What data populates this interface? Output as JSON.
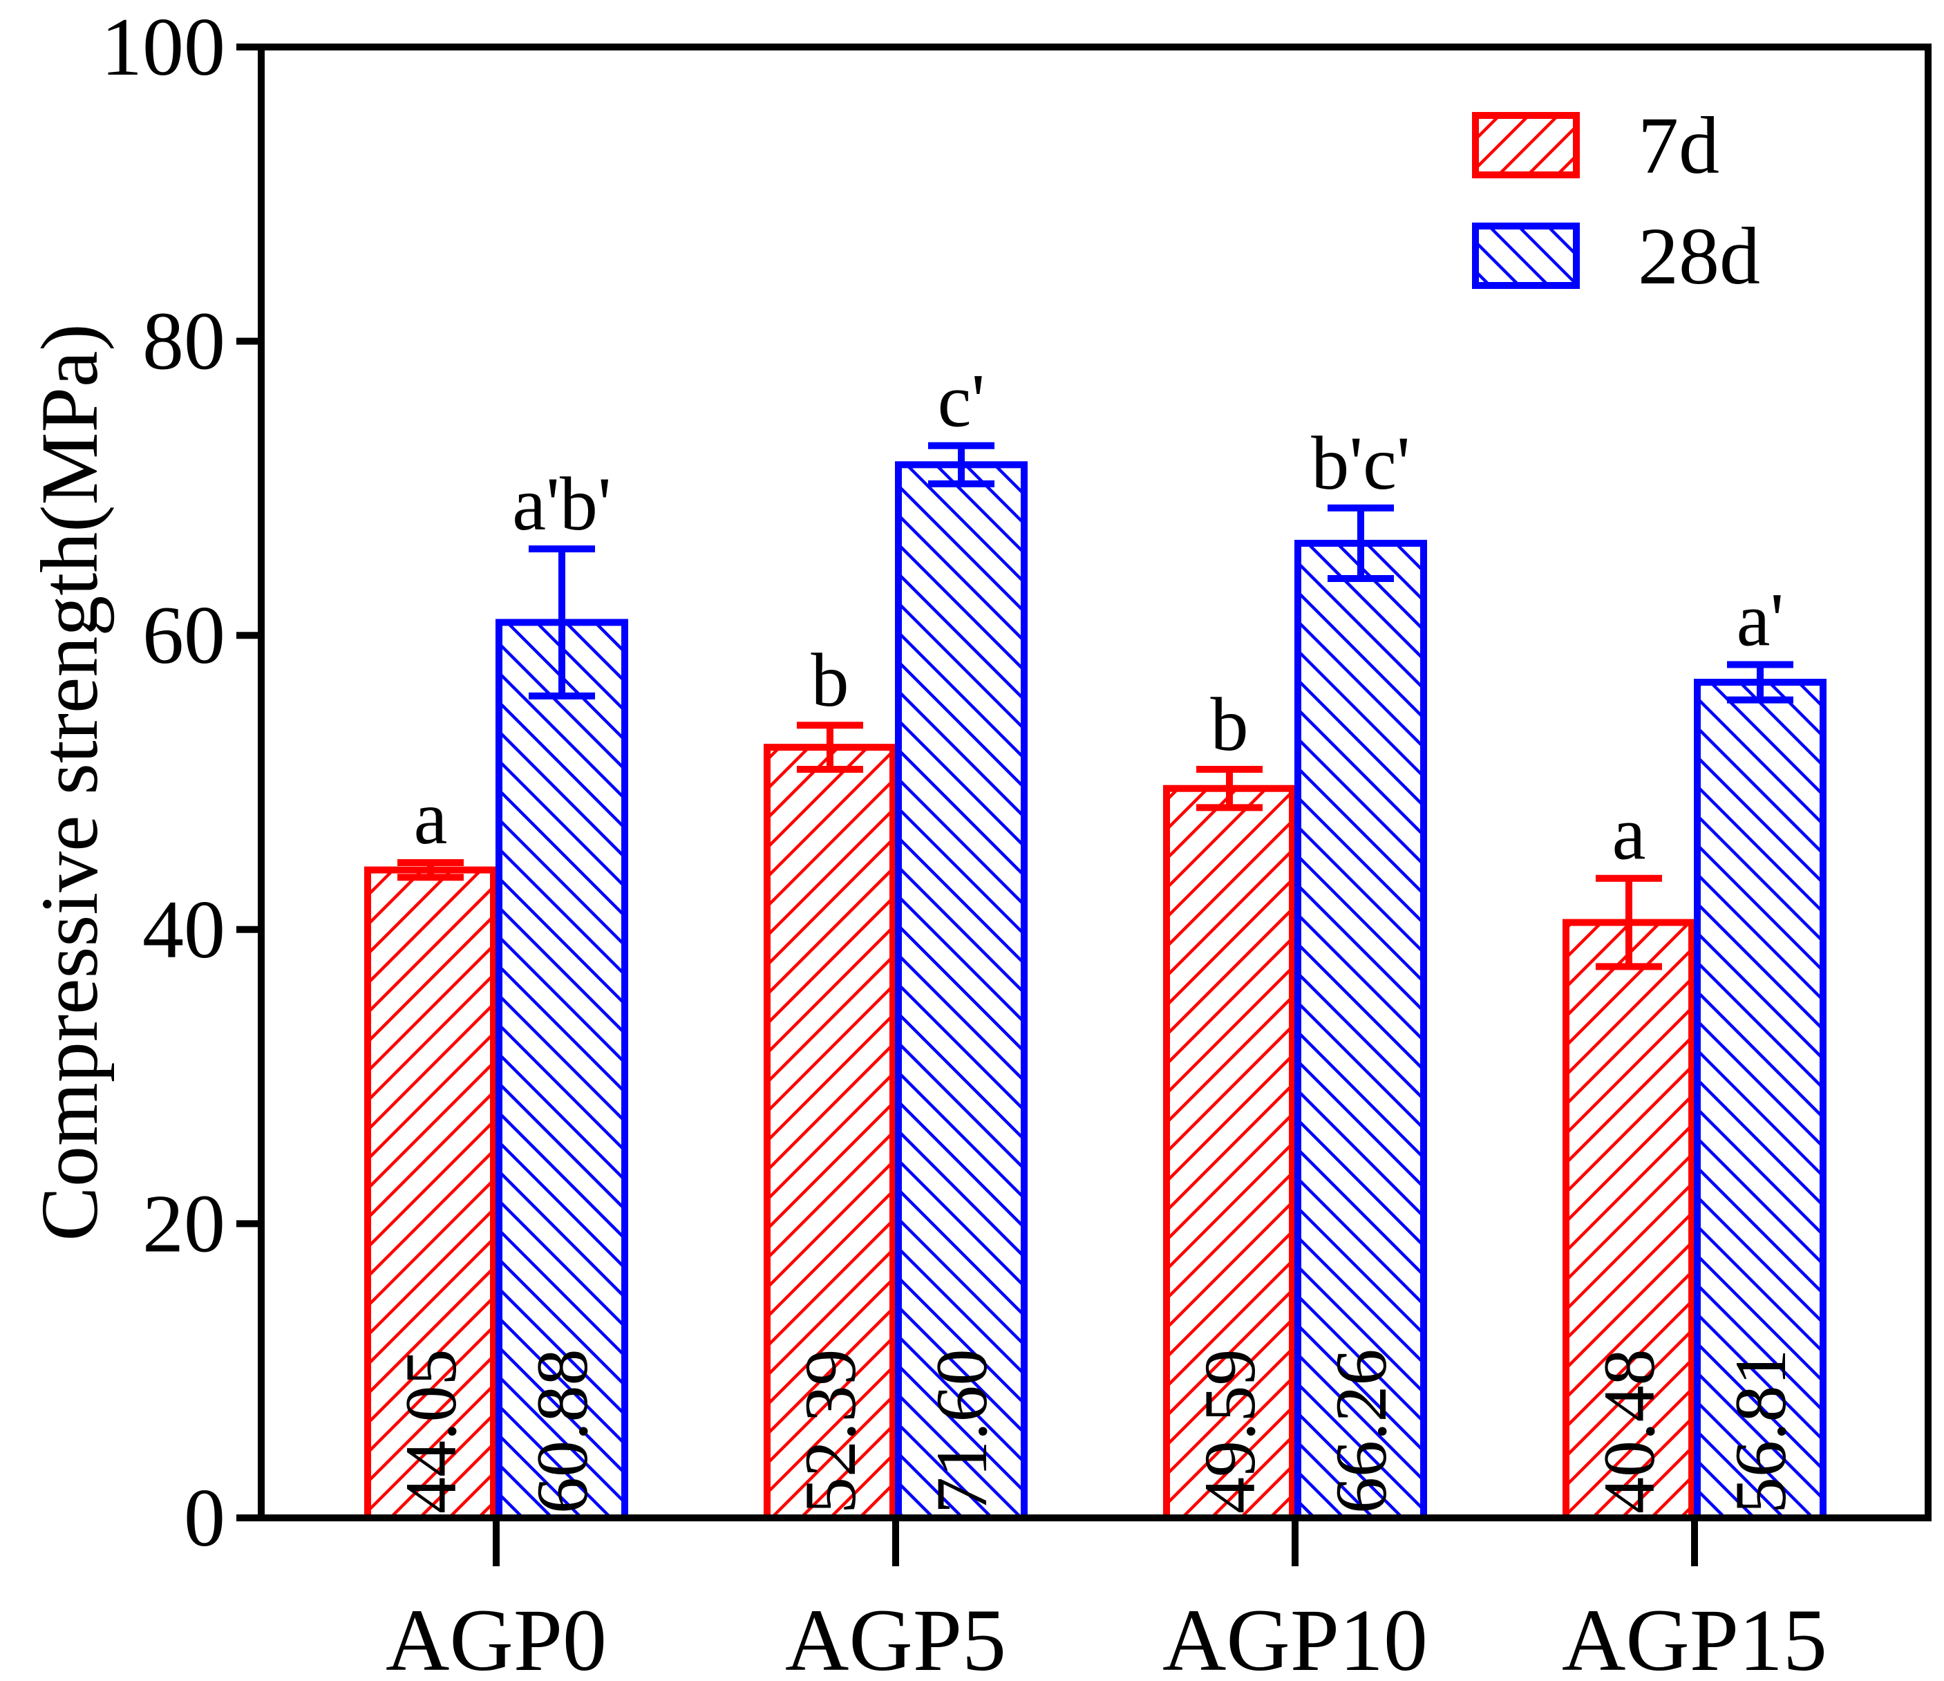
{
  "chart_data": {
    "type": "bar",
    "title": "",
    "xlabel": "",
    "ylabel": "Compressive strength(MPa)",
    "ylim": [
      0,
      100
    ],
    "yticks": [
      "0",
      "20",
      "40",
      "60",
      "80",
      "100"
    ],
    "categories": [
      "AGP0",
      "AGP5",
      "AGP10",
      "AGP15"
    ],
    "legend_position": "top-right",
    "series": [
      {
        "name": "7d",
        "color": "#ff0000",
        "hatch": "diagonal-up",
        "values": [
          44.05,
          52.39,
          49.59,
          40.48
        ],
        "value_labels": [
          "44.05",
          "52.39",
          "49.59",
          "40.48"
        ],
        "errors": [
          0.5,
          1.5,
          1.3,
          3.0
        ],
        "significance": [
          "a",
          "b",
          "b",
          "a"
        ]
      },
      {
        "name": "28d",
        "color": "#0000ff",
        "hatch": "diagonal-down",
        "values": [
          60.88,
          71.6,
          66.26,
          56.81
        ],
        "value_labels": [
          "60.88",
          "71.60",
          "66.26",
          "56.81"
        ],
        "errors": [
          5.0,
          1.3,
          2.4,
          1.2
        ],
        "significance": [
          "a'b'",
          "c'",
          "b'c'",
          "a'"
        ]
      }
    ]
  }
}
